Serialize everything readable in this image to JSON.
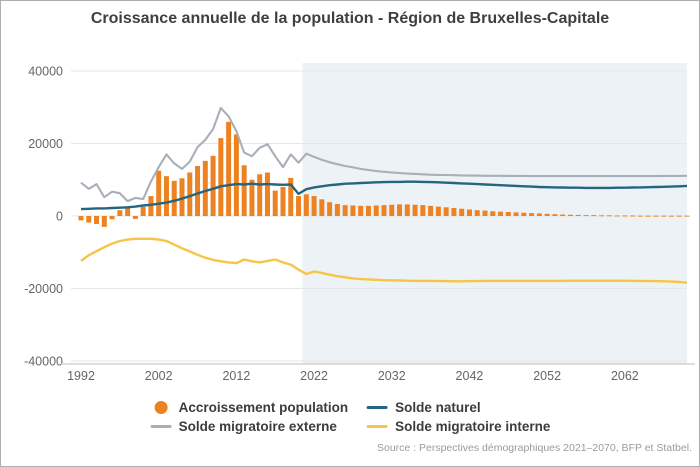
{
  "title": "Croissance annuelle de la population - Région de Bruxelles-Capitale",
  "source": "Source : Perspectives démographiques 2021–2070, BFP et Statbel.",
  "colors": {
    "projection_band": "#EDF2F6",
    "title_text": "#3F3F3F",
    "legend_text": "#3C3C3C",
    "axis_text": "#666666",
    "gridline": "#E6E6E6",
    "axis_line": "#C9C9C9",
    "source_text": "#9B9B9B"
  },
  "chart_data": {
    "type": "bar+line combo",
    "title": "Croissance annuelle de la population - Région de Bruxelles-Capitale",
    "xlabel": "",
    "ylabel": "",
    "x_start": 1992,
    "x_end": 2070,
    "projection_start": 2021,
    "ylim": [
      -40000,
      40000
    ],
    "y_ticks": [
      40000,
      20000,
      0,
      -20000,
      -40000
    ],
    "x_ticks": [
      1992,
      2002,
      2012,
      2022,
      2032,
      2042,
      2052,
      2062
    ],
    "grid": "horizontal",
    "legend_position": "bottom",
    "series": [
      {
        "name": "Accroissement population",
        "type": "bar",
        "color": "#ED8222",
        "values": [
          -1200,
          -1800,
          -2200,
          -3000,
          -900,
          1600,
          2300,
          -800,
          2500,
          5500,
          12500,
          11000,
          9700,
          10400,
          12000,
          13800,
          15200,
          16600,
          21500,
          26000,
          22500,
          14000,
          10000,
          11500,
          12000,
          7000,
          8000,
          10500,
          5500,
          6000,
          5500,
          4600,
          3800,
          3300,
          3000,
          2900,
          2800,
          2800,
          2900,
          3000,
          3100,
          3200,
          3200,
          3100,
          3000,
          2800,
          2600,
          2400,
          2200,
          2000,
          1800,
          1600,
          1500,
          1300,
          1200,
          1100,
          1000,
          900,
          800,
          700,
          600,
          500,
          400,
          350,
          300,
          250,
          250,
          200,
          200,
          150,
          150,
          150,
          100,
          100,
          100,
          100,
          100,
          100,
          100
        ]
      },
      {
        "name": "Solde naturel",
        "type": "line",
        "color": "#26657F",
        "values": [
          1900,
          2000,
          2100,
          2100,
          2200,
          2300,
          2400,
          2600,
          2900,
          3100,
          3400,
          3700,
          4200,
          4800,
          5500,
          6200,
          6900,
          7500,
          8200,
          8500,
          8800,
          8700,
          8900,
          8700,
          8800,
          8700,
          8600,
          8700,
          6100,
          7400,
          7900,
          8200,
          8500,
          8700,
          8900,
          9000,
          9100,
          9200,
          9300,
          9350,
          9400,
          9400,
          9450,
          9450,
          9400,
          9350,
          9300,
          9200,
          9100,
          9000,
          8900,
          8800,
          8700,
          8600,
          8500,
          8400,
          8300,
          8200,
          8100,
          8000,
          7950,
          7900,
          7850,
          7800,
          7800,
          7750,
          7750,
          7750,
          7750,
          7800,
          7800,
          7850,
          7900,
          7950,
          8000,
          8050,
          8100,
          8200,
          8300
        ]
      },
      {
        "name": "Solde migratoire externe",
        "type": "line",
        "color": "#A8AFB8",
        "values": [
          9200,
          7500,
          8800,
          5200,
          6700,
          6300,
          4100,
          5000,
          4700,
          9500,
          13500,
          17000,
          14500,
          13000,
          15000,
          19000,
          21000,
          24000,
          29800,
          27500,
          23400,
          17500,
          16500,
          18800,
          19800,
          16500,
          13500,
          17000,
          14700,
          17200,
          16300,
          15500,
          14800,
          14300,
          13800,
          13400,
          13000,
          12700,
          12400,
          12200,
          12000,
          11850,
          11700,
          11600,
          11500,
          11400,
          11350,
          11300,
          11250,
          11200,
          11150,
          11150,
          11100,
          11100,
          11100,
          11050,
          11050,
          11050,
          11000,
          11000,
          11000,
          11000,
          11000,
          11000,
          11000,
          11000,
          11000,
          11000,
          11000,
          11000,
          11000,
          11000,
          11000,
          11000,
          11000,
          11050,
          11050,
          11050,
          11100
        ]
      },
      {
        "name": "Solde migratoire interne",
        "type": "line",
        "color": "#F6C545",
        "values": [
          -12400,
          -10800,
          -9700,
          -8600,
          -7600,
          -6900,
          -6500,
          -6300,
          -6300,
          -6300,
          -6500,
          -6900,
          -7900,
          -8900,
          -9800,
          -10700,
          -11500,
          -12100,
          -12500,
          -12800,
          -13000,
          -12000,
          -12500,
          -12800,
          -12400,
          -12000,
          -12800,
          -13400,
          -14800,
          -16000,
          -15300,
          -15700,
          -16200,
          -16600,
          -16900,
          -17200,
          -17400,
          -17500,
          -17600,
          -17700,
          -17750,
          -17800,
          -17850,
          -17900,
          -17900,
          -17900,
          -17950,
          -17950,
          -18000,
          -18000,
          -17950,
          -17950,
          -17900,
          -17900,
          -17900,
          -17900,
          -17900,
          -17900,
          -17900,
          -17900,
          -17900,
          -17900,
          -17900,
          -17850,
          -17850,
          -17850,
          -17850,
          -17850,
          -17850,
          -17850,
          -17850,
          -17900,
          -17900,
          -17950,
          -17950,
          -18000,
          -18100,
          -18200,
          -18400
        ]
      }
    ]
  }
}
